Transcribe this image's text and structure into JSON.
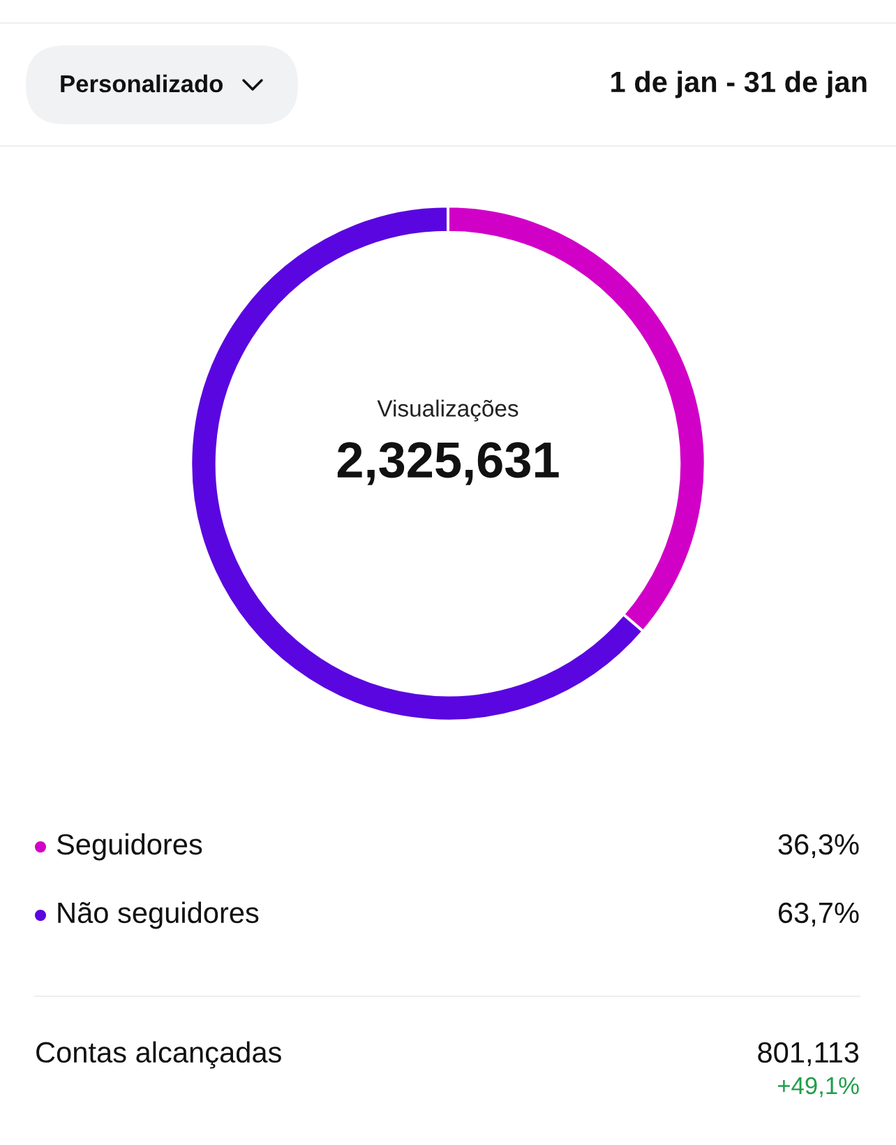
{
  "chart_data": {
    "type": "donut",
    "categories": [
      "Seguidores",
      "Não seguidores"
    ],
    "values": [
      36.3,
      63.7
    ],
    "colors": [
      "#d100c6",
      "#5a06e0"
    ],
    "value_labels": [
      "36,3%",
      "63,7%"
    ],
    "legend": "bottom",
    "annotations": [
      "Personalizado",
      "1 de jan - 31 de jan",
      "Visualizações",
      "2,325,631",
      "Contas alcançadas",
      "801,113",
      "+49,1%"
    ]
  }
}
